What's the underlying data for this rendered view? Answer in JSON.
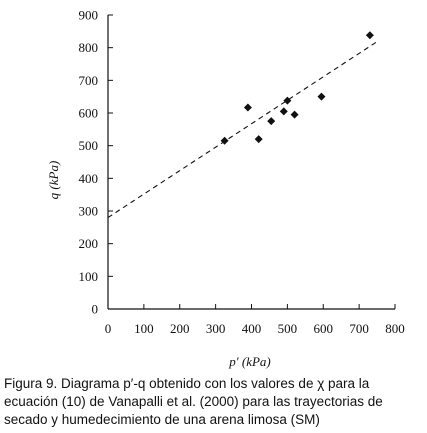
{
  "chart_data": {
    "type": "scatter",
    "xlabel": "p′ (kPa)",
    "ylabel": "q (kPa)",
    "xlim": [
      0,
      800
    ],
    "ylim": [
      0,
      900
    ],
    "xticks": [
      0,
      100,
      200,
      300,
      400,
      500,
      600,
      700,
      800
    ],
    "yticks": [
      0,
      100,
      200,
      300,
      400,
      500,
      600,
      700,
      800,
      900
    ],
    "grid": false,
    "points": [
      {
        "x": 325,
        "y": 515
      },
      {
        "x": 390,
        "y": 617
      },
      {
        "x": 420,
        "y": 520
      },
      {
        "x": 455,
        "y": 575
      },
      {
        "x": 490,
        "y": 605
      },
      {
        "x": 500,
        "y": 638
      },
      {
        "x": 520,
        "y": 595
      },
      {
        "x": 595,
        "y": 650
      },
      {
        "x": 730,
        "y": 838
      }
    ],
    "trendline": {
      "style": "dashed",
      "x": [
        0,
        755
      ],
      "y": [
        280,
        822
      ]
    }
  },
  "caption": {
    "line1": "Figura 9. Diagrama  p′-q obtenido con los valores de χ para la",
    "line2": "ecuación (10) de Vanapalli et al. (2000) para las trayectorias de",
    "line3": "secado y humedecimiento de una arena limosa (SM)"
  }
}
